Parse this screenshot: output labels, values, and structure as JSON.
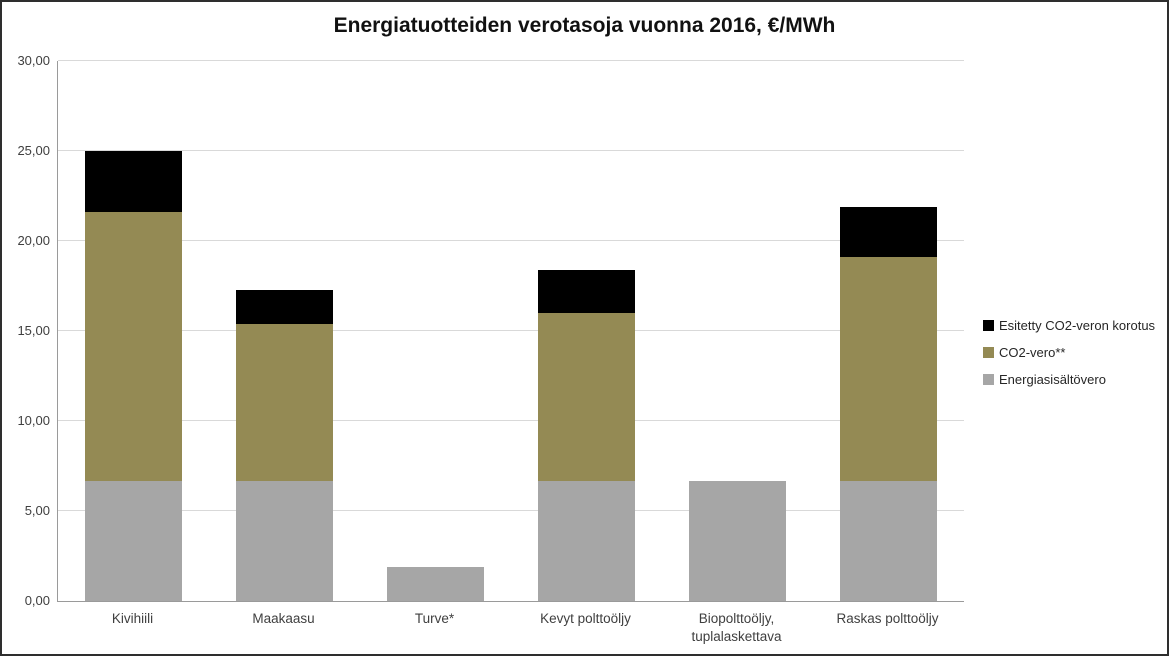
{
  "title": "Energiatuotteiden verotasoja vuonna 2016, €/MWh",
  "colors": {
    "increase_black": "#000000",
    "co2_olive": "#948A54",
    "energy_gray": "#A6A6A6",
    "gridline": "#D9D9D9",
    "axis_line": "#9A9A9A",
    "axis_text": "#3F3F3F",
    "border": "#2E2E2E"
  },
  "chart_data": {
    "type": "bar",
    "stacked": true,
    "title": "Energiatuotteiden verotasoja vuonna 2016, €/MWh",
    "xlabel": "",
    "ylabel": "",
    "ylim": [
      0,
      30
    ],
    "ytick_step": 5,
    "ytick_labels": [
      "0,00",
      "5,00",
      "10,00",
      "15,00",
      "20,00",
      "25,00",
      "30,00"
    ],
    "grid": true,
    "legend_position": "right",
    "categories": [
      "Kivihiili",
      "Maakaasu",
      "Turve*",
      "Kevyt polttoöljy",
      "Biopolttoöljy,\ntuplalaskettava",
      "Raskas polttoöljy"
    ],
    "series": [
      {
        "name": "Energiasisältövero",
        "color": "#A6A6A6",
        "values": [
          6.65,
          6.65,
          1.9,
          6.65,
          6.65,
          6.65
        ]
      },
      {
        "name": "CO2-vero**",
        "color": "#948A54",
        "values": [
          14.95,
          8.75,
          0,
          9.35,
          0,
          12.45
        ]
      },
      {
        "name": "Esitetty CO2-veron korotus",
        "color": "#000000",
        "values": [
          3.4,
          1.9,
          0,
          2.4,
          0,
          2.8
        ]
      }
    ],
    "stack_totals": [
      25.0,
      17.3,
      1.9,
      18.4,
      6.65,
      21.9
    ],
    "legend_entries": [
      {
        "label": "Esitetty CO2-veron korotus",
        "color": "#000000"
      },
      {
        "label": "CO2-vero**",
        "color": "#948A54"
      },
      {
        "label": "Energiasisältövero",
        "color": "#A6A6A6"
      }
    ]
  }
}
